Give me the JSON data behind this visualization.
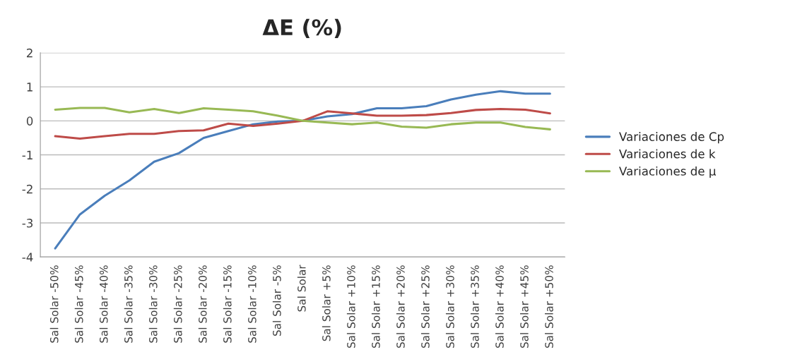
{
  "chart_data": {
    "type": "line",
    "title": "ΔE (%)",
    "categories": [
      "Sal Solar -50%",
      "Sal Solar -45%",
      "Sal Solar -40%",
      "Sal Solar -35%",
      "Sal Solar -30%",
      "Sal Solar -25%",
      "Sal Solar -20%",
      "Sal Solar -15%",
      "Sal Solar -10%",
      "Sal Solar -5%",
      "Sal Solar",
      "Sal Solar +5%",
      "Sal Solar +10%",
      "Sal Solar +15%",
      "Sal Solar +20%",
      "Sal Solar +25%",
      "Sal Solar +30%",
      "Sal Solar +35%",
      "Sal Solar +40%",
      "Sal Solar +45%",
      "Sal Solar +50%"
    ],
    "series": [
      {
        "name": "Variaciones de Cp",
        "color": "#4a7ebb",
        "values": [
          -3.75,
          -2.75,
          -2.2,
          -1.75,
          -1.2,
          -0.95,
          -0.5,
          -0.3,
          -0.1,
          -0.02,
          0,
          0.13,
          0.2,
          0.37,
          0.37,
          0.43,
          0.63,
          0.77,
          0.87,
          0.8,
          0.8
        ]
      },
      {
        "name": "Variaciones de k",
        "color": "#be4b48",
        "values": [
          -0.45,
          -0.52,
          -0.45,
          -0.38,
          -0.38,
          -0.3,
          -0.28,
          -0.08,
          -0.15,
          -0.08,
          0,
          0.28,
          0.22,
          0.15,
          0.15,
          0.17,
          0.23,
          0.32,
          0.35,
          0.33,
          0.22
        ]
      },
      {
        "name": "Variaciones de μ",
        "color": "#98b954",
        "values": [
          0.33,
          0.38,
          0.38,
          0.25,
          0.35,
          0.23,
          0.37,
          0.33,
          0.28,
          0.15,
          0,
          -0.05,
          -0.1,
          -0.05,
          -0.17,
          -0.2,
          -0.1,
          -0.05,
          -0.05,
          -0.18,
          -0.25
        ]
      }
    ],
    "ylim": [
      -4,
      2
    ],
    "yticks": [
      -4,
      -3,
      -2,
      -1,
      0,
      1,
      2
    ],
    "grid": "y",
    "legend": "right",
    "marker": "none",
    "line_style": "solid"
  }
}
